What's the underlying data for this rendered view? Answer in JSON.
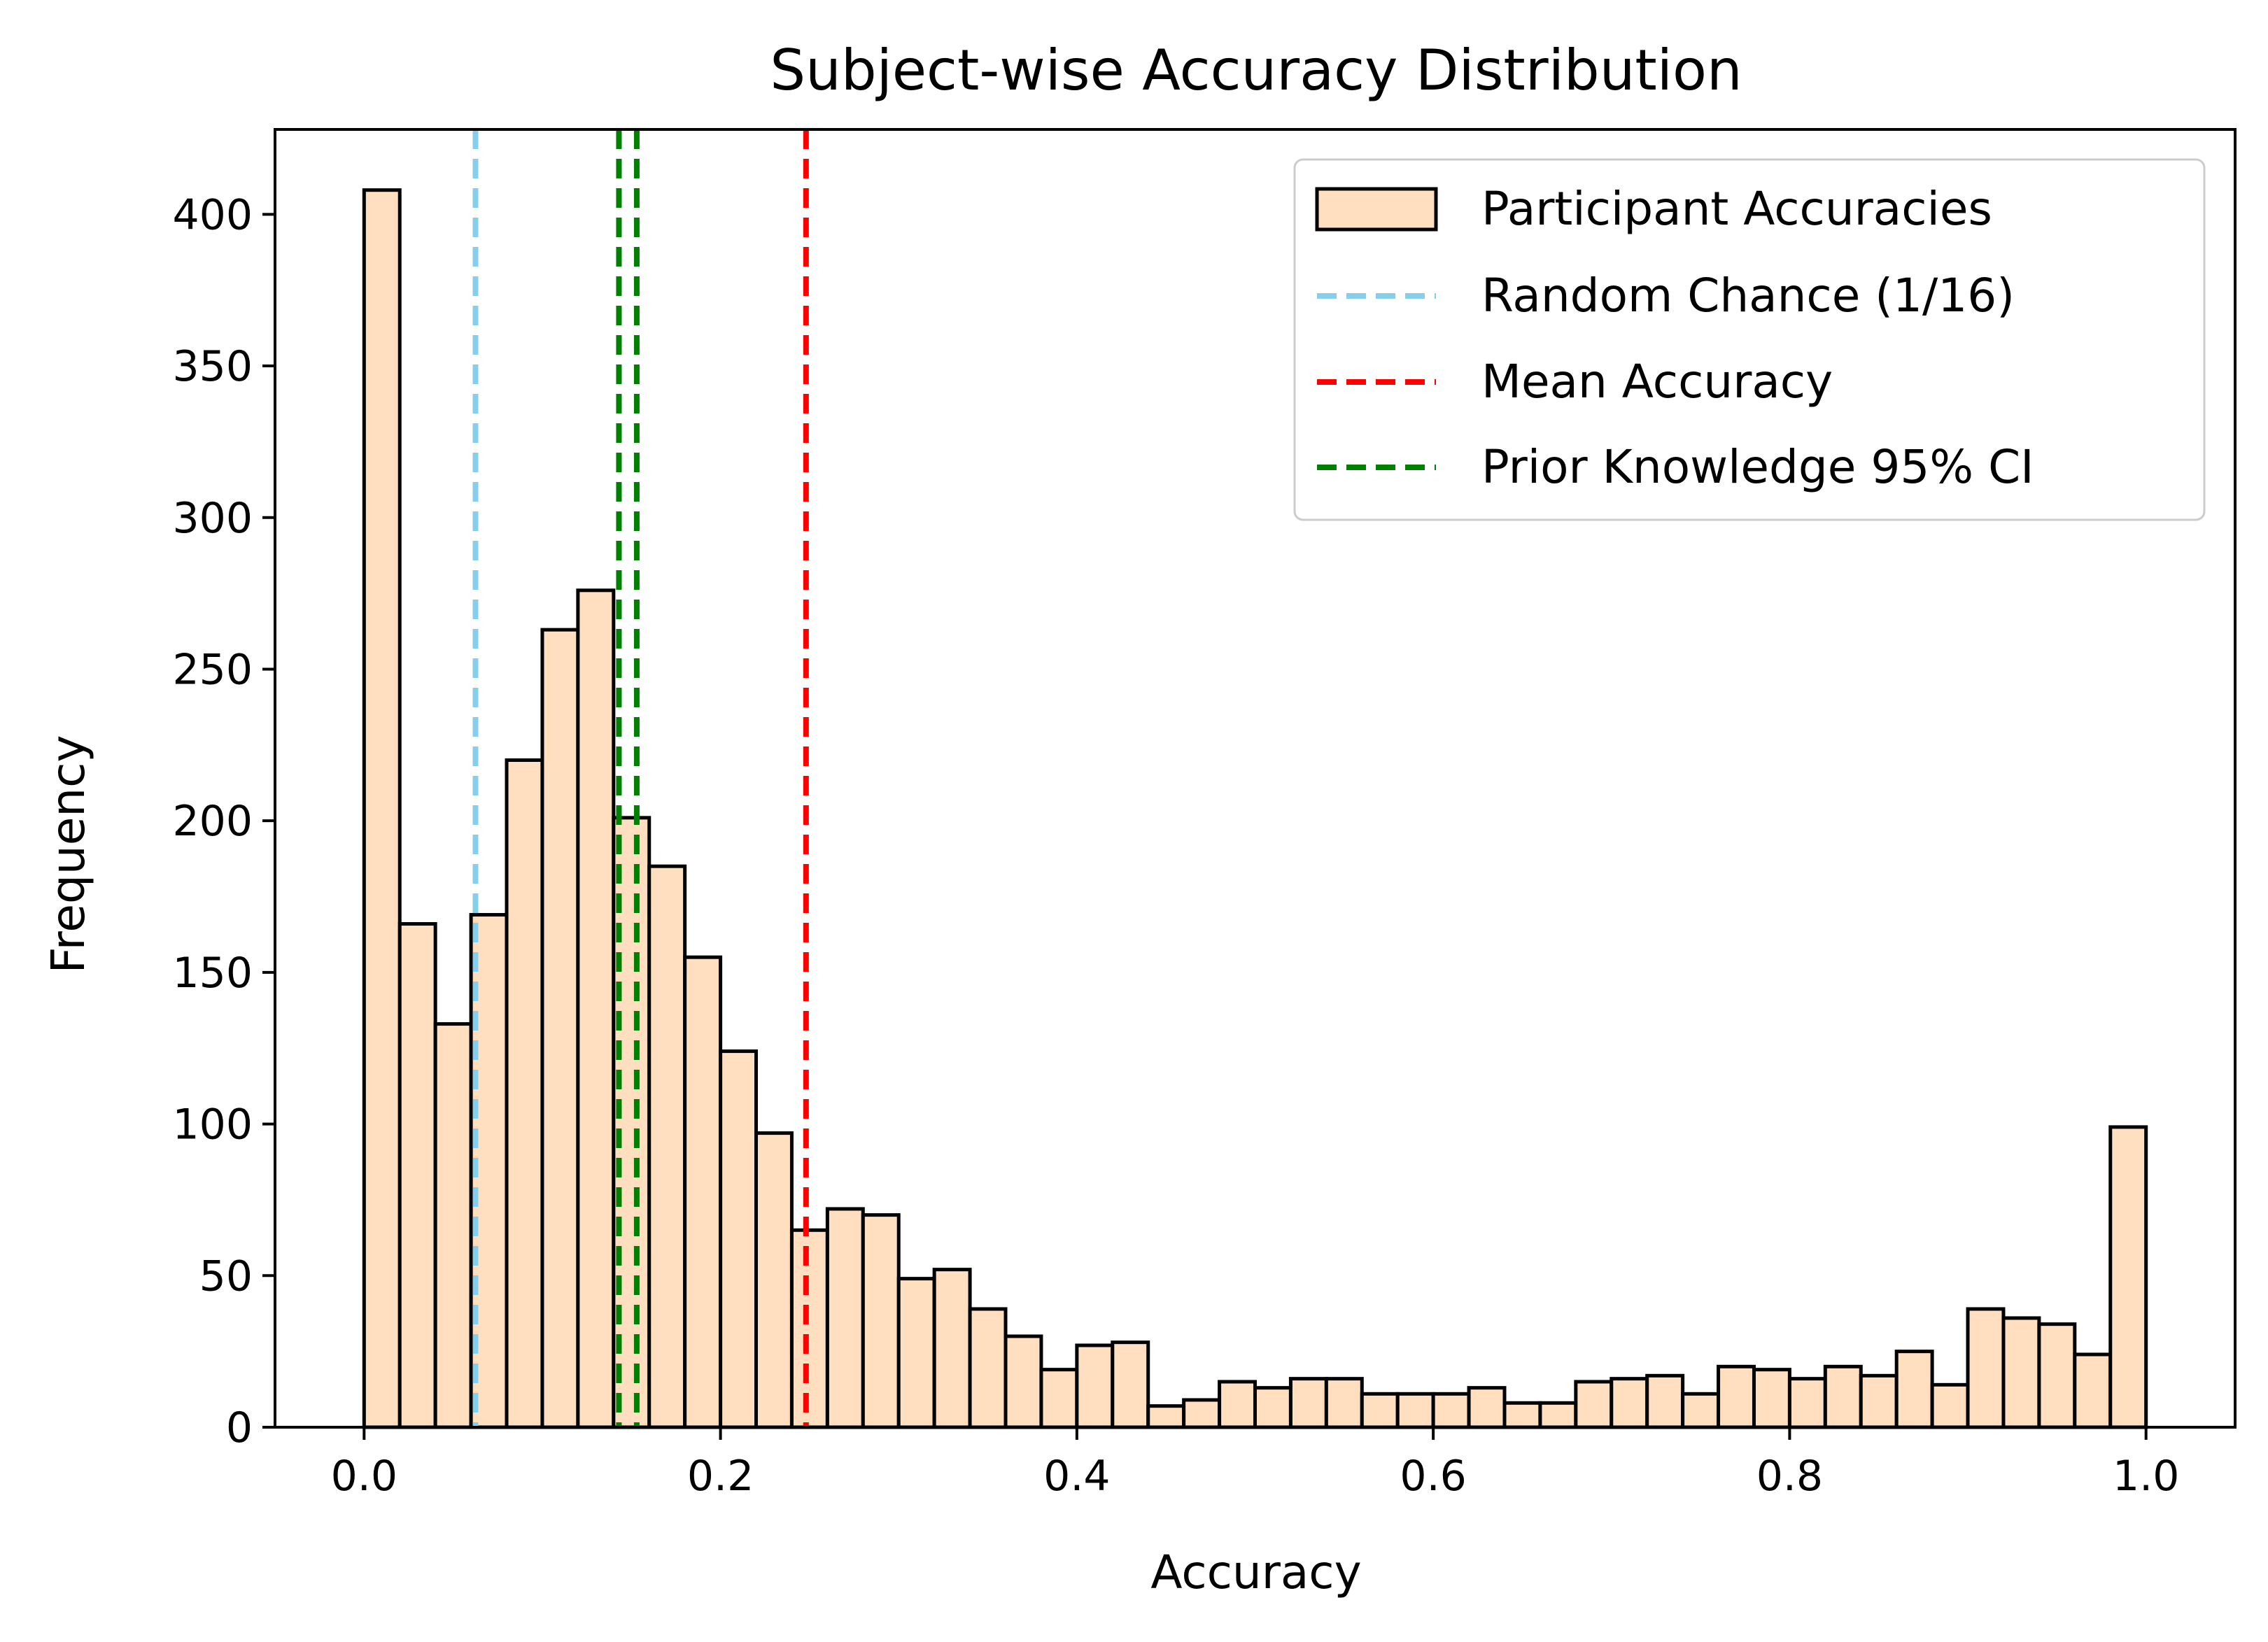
{
  "chart_data": {
    "type": "bar",
    "subtype": "histogram",
    "title": "Subject-wise Accuracy Distribution",
    "xlabel": "Accuracy",
    "ylabel": "Frequency",
    "xlim": [
      -0.05,
      1.05
    ],
    "ylim": [
      0,
      428
    ],
    "xticks": [
      0.0,
      0.2,
      0.4,
      0.6,
      0.8,
      1.0
    ],
    "xtick_labels": [
      "0.0",
      "0.2",
      "0.4",
      "0.6",
      "0.8",
      "1.0"
    ],
    "yticks": [
      0,
      50,
      100,
      150,
      200,
      250,
      300,
      350,
      400
    ],
    "ytick_labels": [
      "0",
      "50",
      "100",
      "150",
      "200",
      "250",
      "300",
      "350",
      "400"
    ],
    "grid": false,
    "legend_position": "top-right",
    "bin_start": 0.0,
    "bin_end": 1.0,
    "bin_count": 50,
    "series": [
      {
        "name": "Participant Accuracies",
        "style": "histogram",
        "color": "#ffdfbf",
        "edge_color": "#000000",
        "values": [
          408,
          166,
          133,
          169,
          220,
          263,
          276,
          201,
          185,
          155,
          124,
          97,
          65,
          72,
          70,
          49,
          52,
          39,
          30,
          19,
          27,
          28,
          7,
          9,
          15,
          13,
          16,
          16,
          11,
          11,
          11,
          13,
          8,
          8,
          15,
          16,
          17,
          11,
          20,
          19,
          16,
          20,
          17,
          25,
          14,
          39,
          36,
          34,
          24,
          99
        ]
      }
    ],
    "reference_lines": [
      {
        "name": "Random Chance (1/16)",
        "x": 0.0625,
        "color": "#87ceeb",
        "style": "dashed"
      },
      {
        "name": "Mean Accuracy",
        "x": 0.248,
        "color": "#ff0000",
        "style": "dashed"
      },
      {
        "name": "Prior Knowledge 95% CI",
        "x": 0.143,
        "color": "#008000",
        "style": "dashed"
      },
      {
        "name": "Prior Knowledge 95% CI",
        "x": 0.153,
        "color": "#008000",
        "style": "dashed"
      }
    ],
    "legend": [
      {
        "label": "Participant Accuracies",
        "kind": "patch",
        "color": "#ffdfbf",
        "edge_color": "#000000"
      },
      {
        "label": "Random Chance (1/16)",
        "kind": "line",
        "color": "#87ceeb"
      },
      {
        "label": "Mean Accuracy",
        "kind": "line",
        "color": "#ff0000"
      },
      {
        "label": "Prior Knowledge 95% CI",
        "kind": "line",
        "color": "#008000"
      }
    ]
  }
}
